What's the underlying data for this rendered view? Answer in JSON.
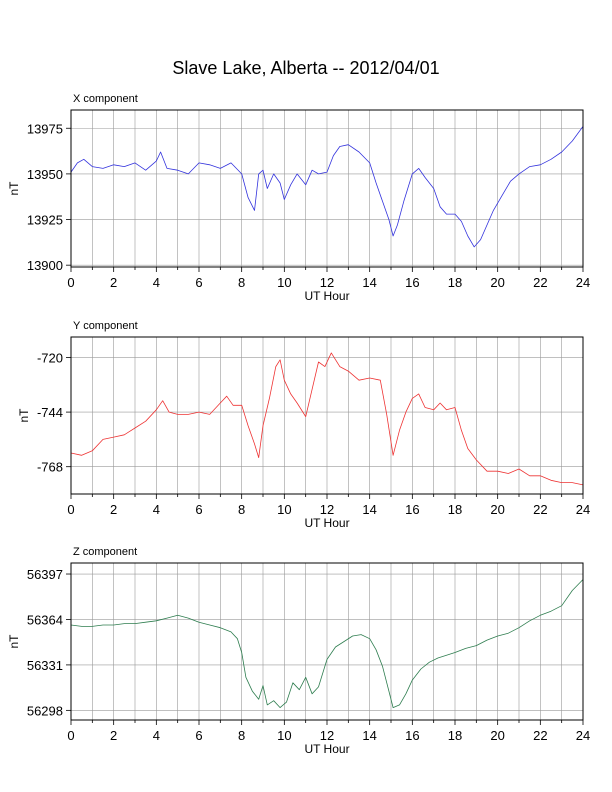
{
  "title": "Slave Lake, Alberta -- 2012/04/01",
  "chart_data": [
    {
      "type": "line",
      "title": "X component",
      "xlabel": "UT Hour",
      "ylabel": "nT",
      "xlim": [
        0,
        24
      ],
      "ylim": [
        13899,
        13985
      ],
      "xticks": [
        0,
        2,
        4,
        6,
        8,
        10,
        12,
        14,
        16,
        18,
        20,
        22,
        24
      ],
      "yticks": [
        13900,
        13925,
        13950,
        13975
      ],
      "grid": true,
      "color": "#3333dd",
      "series": [
        {
          "x": [
            0,
            0.3,
            0.6,
            1,
            1.5,
            2,
            2.5,
            3,
            3.5,
            4,
            4.2,
            4.5,
            5,
            5.5,
            6,
            6.5,
            7,
            7.5,
            8,
            8.3,
            8.6,
            8.8,
            9,
            9.2,
            9.5,
            9.8,
            10,
            10.3,
            10.6,
            11,
            11.3,
            11.6,
            12,
            12.3,
            12.6,
            13,
            13.5,
            14,
            14.3,
            14.6,
            14.9,
            15.1,
            15.3,
            15.6,
            16,
            16.3,
            16.6,
            17,
            17.3,
            17.6,
            18,
            18.3,
            18.6,
            18.9,
            19.2,
            19.5,
            19.8,
            20.2,
            20.6,
            21,
            21.5,
            22,
            22.5,
            23,
            23.5,
            24
          ],
          "y": [
            13951,
            13956,
            13958,
            13954,
            13953,
            13955,
            13954,
            13956,
            13952,
            13957,
            13962,
            13953,
            13952,
            13950,
            13956,
            13955,
            13953,
            13956,
            13950,
            13937,
            13930,
            13950,
            13952,
            13942,
            13950,
            13945,
            13936,
            13944,
            13950,
            13944,
            13952,
            13950,
            13951,
            13960,
            13965,
            13966,
            13962,
            13956,
            13945,
            13935,
            13925,
            13916,
            13922,
            13935,
            13950,
            13953,
            13948,
            13942,
            13932,
            13928,
            13928,
            13924,
            13916,
            13910,
            13914,
            13922,
            13930,
            13938,
            13946,
            13950,
            13954,
            13955,
            13958,
            13962,
            13968,
            13976
          ]
        }
      ]
    },
    {
      "type": "line",
      "title": "Y component",
      "xlabel": "UT Hour",
      "ylabel": "nT",
      "xlim": [
        0,
        24
      ],
      "ylim": [
        -780,
        -711
      ],
      "xticks": [
        0,
        2,
        4,
        6,
        8,
        10,
        12,
        14,
        16,
        18,
        20,
        22,
        24
      ],
      "yticks": [
        -720,
        -744,
        -768
      ],
      "grid": true,
      "color": "#ee3333",
      "series": [
        {
          "x": [
            0,
            0.5,
            1,
            1.5,
            2,
            2.5,
            3,
            3.5,
            4,
            4.3,
            4.6,
            5,
            5.5,
            6,
            6.5,
            7,
            7.3,
            7.6,
            8,
            8.3,
            8.6,
            8.8,
            9,
            9.3,
            9.6,
            9.8,
            10,
            10.3,
            10.6,
            11,
            11.3,
            11.6,
            11.9,
            12.2,
            12.6,
            13,
            13.5,
            14,
            14.5,
            14.8,
            15.1,
            15.4,
            15.7,
            16,
            16.3,
            16.6,
            17,
            17.3,
            17.6,
            18,
            18.3,
            18.6,
            19,
            19.5,
            20,
            20.5,
            21,
            21.5,
            22,
            22.5,
            23,
            23.5,
            24
          ],
          "y": [
            -762,
            -763,
            -761,
            -756,
            -755,
            -754,
            -751,
            -748,
            -743,
            -739,
            -744,
            -745,
            -745,
            -744,
            -745,
            -740,
            -737,
            -741,
            -741,
            -750,
            -758,
            -764,
            -750,
            -738,
            -724,
            -721,
            -730,
            -736,
            -740,
            -746,
            -734,
            -722,
            -724,
            -718,
            -724,
            -726,
            -730,
            -729,
            -730,
            -745,
            -763,
            -752,
            -744,
            -738,
            -736,
            -742,
            -743,
            -740,
            -743,
            -742,
            -752,
            -760,
            -765,
            -770,
            -770,
            -771,
            -769,
            -772,
            -772,
            -774,
            -775,
            -775,
            -776
          ]
        }
      ]
    },
    {
      "type": "line",
      "title": "Z component",
      "xlabel": "UT Hour",
      "ylabel": "nT",
      "xlim": [
        0,
        24
      ],
      "ylim": [
        56291,
        56405
      ],
      "xticks": [
        0,
        2,
        4,
        6,
        8,
        10,
        12,
        14,
        16,
        18,
        20,
        22,
        24
      ],
      "yticks": [
        56298,
        56331,
        56364,
        56397
      ],
      "grid": true,
      "color": "#2e7d4f",
      "series": [
        {
          "x": [
            0,
            0.5,
            1,
            1.5,
            2,
            2.5,
            3,
            3.5,
            4,
            4.5,
            5,
            5.5,
            6,
            6.5,
            7,
            7.5,
            7.8,
            8,
            8.2,
            8.5,
            8.8,
            9,
            9.2,
            9.5,
            9.8,
            10.1,
            10.4,
            10.7,
            11,
            11.3,
            11.6,
            12,
            12.4,
            12.8,
            13.2,
            13.6,
            14,
            14.3,
            14.6,
            14.9,
            15.1,
            15.4,
            15.7,
            16,
            16.4,
            16.8,
            17.2,
            17.6,
            18,
            18.5,
            19,
            19.5,
            20,
            20.5,
            21,
            21.5,
            22,
            22.5,
            23,
            23.5,
            24
          ],
          "y": [
            56360,
            56359,
            56359,
            56360,
            56360,
            56361,
            56361,
            56362,
            56363,
            56365,
            56367,
            56365,
            56362,
            56360,
            56358,
            56355,
            56350,
            56340,
            56322,
            56312,
            56306,
            56316,
            56302,
            56305,
            56300,
            56304,
            56318,
            56313,
            56322,
            56310,
            56315,
            56335,
            56344,
            56348,
            56352,
            56353,
            56350,
            56342,
            56330,
            56312,
            56300,
            56302,
            56310,
            56320,
            56328,
            56333,
            56336,
            56338,
            56340,
            56343,
            56345,
            56349,
            56352,
            56354,
            56358,
            56363,
            56367,
            56370,
            56374,
            56385,
            56393
          ]
        }
      ]
    }
  ]
}
